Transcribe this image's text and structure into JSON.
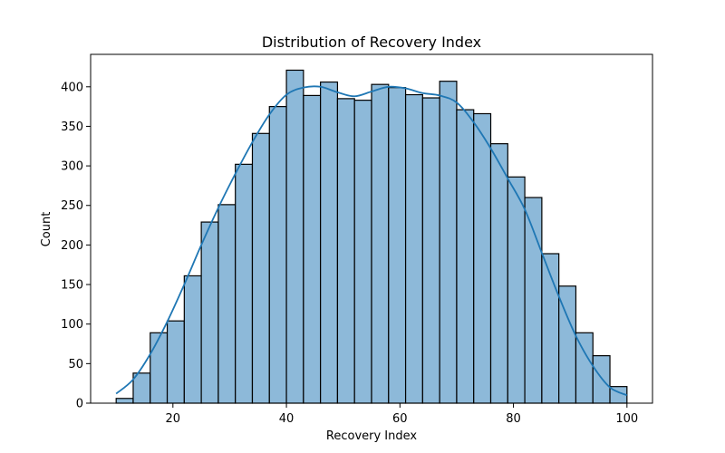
{
  "chart_data": {
    "type": "bar",
    "title": "Distribution of Recovery Index",
    "xlabel": "Recovery Index",
    "ylabel": "Count",
    "xlim": [
      5.5,
      104.5
    ],
    "ylim": [
      0,
      441
    ],
    "xticks": [
      20,
      40,
      60,
      80,
      100
    ],
    "yticks": [
      0,
      50,
      100,
      150,
      200,
      250,
      300,
      350,
      400
    ],
    "bin_edges": [
      10,
      13,
      16,
      19,
      22,
      25,
      28,
      31,
      34,
      37,
      40,
      43,
      46,
      49,
      52,
      55,
      58,
      61,
      64,
      67,
      70,
      73,
      76,
      79,
      82,
      85,
      88,
      91,
      94,
      97,
      100
    ],
    "values": [
      6,
      38,
      89,
      104,
      161,
      229,
      251,
      302,
      341,
      375,
      421,
      389,
      406,
      385,
      383,
      403,
      399,
      390,
      386,
      407,
      371,
      366,
      328,
      286,
      260,
      189,
      148,
      89,
      60,
      21
    ],
    "kde": {
      "x": [
        10,
        13,
        16,
        19,
        22,
        25,
        28,
        31,
        34,
        37,
        40,
        43,
        46,
        49,
        52,
        55,
        58,
        61,
        64,
        67,
        70,
        73,
        76,
        79,
        82,
        85,
        88,
        91,
        94,
        97,
        100
      ],
      "y": [
        12,
        30,
        62,
        103,
        150,
        200,
        247,
        290,
        330,
        365,
        390,
        399,
        400,
        393,
        388,
        394,
        400,
        398,
        392,
        389,
        380,
        355,
        322,
        284,
        245,
        190,
        135,
        85,
        47,
        20,
        10
      ]
    },
    "grid": false,
    "legend": "none"
  }
}
